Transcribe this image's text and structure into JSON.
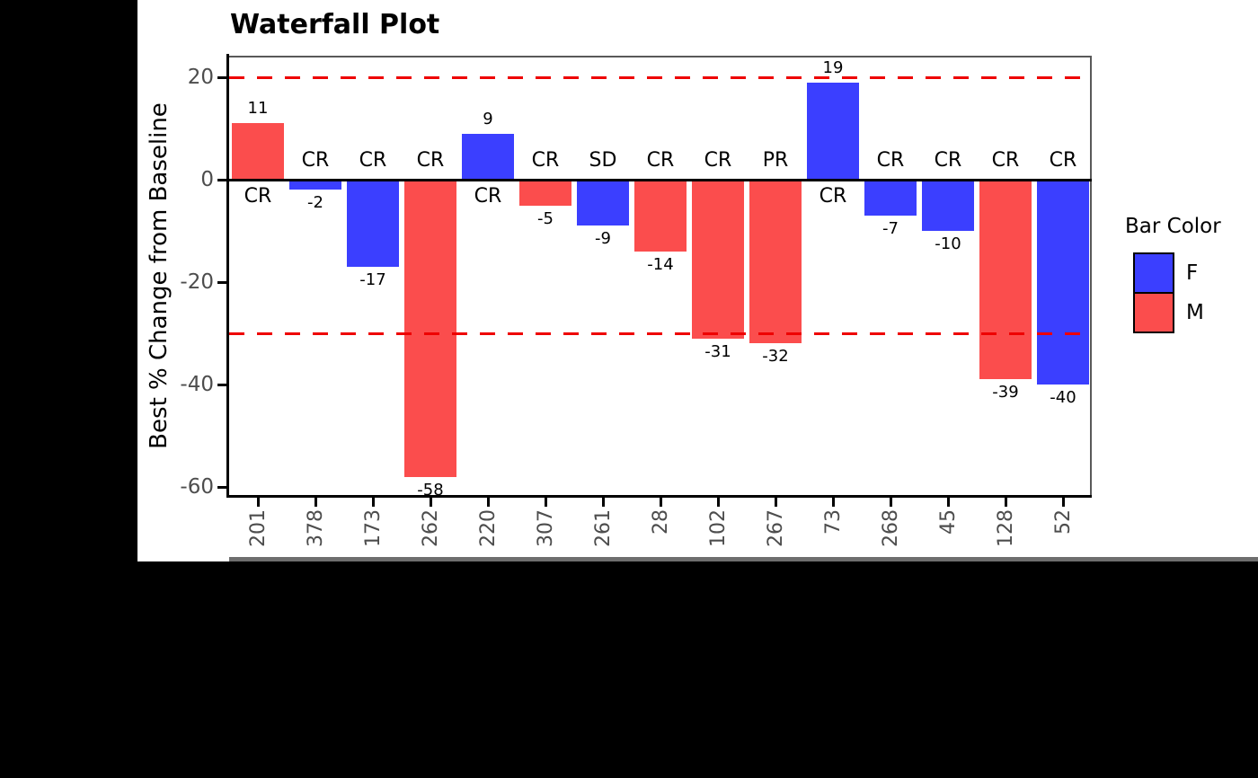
{
  "page": {
    "background": "#000000",
    "plot_background": "#ffffff"
  },
  "chart_data": {
    "type": "bar",
    "title": "Waterfall Plot",
    "ylabel": "Best % Change from Baseline",
    "xlabel": "",
    "yticks": [
      20,
      0,
      -20,
      -40,
      -60
    ],
    "ylim": [
      -62,
      24
    ],
    "grid": false,
    "reference_lines": [
      20,
      -30
    ],
    "categories": [
      "201",
      "378",
      "173",
      "262",
      "220",
      "307",
      "261",
      "28",
      "102",
      "267",
      "73",
      "268",
      "45",
      "128",
      "52"
    ],
    "values": [
      11,
      -2,
      -17,
      -58,
      9,
      -5,
      -9,
      -14,
      -31,
      -32,
      19,
      -7,
      -10,
      -39,
      -40
    ],
    "groups": [
      "M",
      "F",
      "F",
      "M",
      "F",
      "M",
      "F",
      "M",
      "M",
      "M",
      "F",
      "F",
      "F",
      "M",
      "F"
    ],
    "responses": [
      "CR",
      "CR",
      "CR",
      "CR",
      "CR",
      "CR",
      "SD",
      "CR",
      "CR",
      "PR",
      "CR",
      "CR",
      "CR",
      "CR",
      "CR"
    ],
    "legend": {
      "title": "Bar Color",
      "position": "right",
      "entries": [
        {
          "label": "F",
          "color": "#3B3FFF"
        },
        {
          "label": "M",
          "color": "#FB4D4D"
        }
      ]
    },
    "colors": {
      "F": "#3B3FFF",
      "M": "#FB4D4D",
      "reference_line": "#EE0000",
      "axis_text": "#4D4D4D",
      "panel_border": "#595959",
      "axis_line": "#000000"
    }
  }
}
